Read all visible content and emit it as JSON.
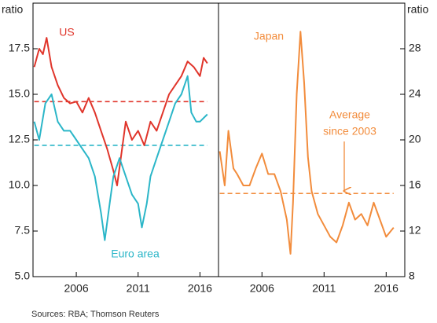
{
  "chart_data": [
    {
      "type": "line",
      "axis_label": "ratio",
      "xlim": [
        2002.5,
        2017.5
      ],
      "xticks": [
        2006,
        2011,
        2016
      ],
      "ylim": [
        5,
        20
      ],
      "yticks": [
        {
          "value": 5,
          "label": "5.0"
        },
        7.5,
        {
          "value": 10,
          "label": "10.0"
        },
        12.5,
        {
          "value": 15,
          "label": "15.0"
        },
        17.5
      ],
      "series": [
        {
          "name": "US",
          "color": "#e0352b",
          "average": 14.6,
          "x": [
            2002.6,
            2003,
            2003.3,
            2003.6,
            2004,
            2004.5,
            2005,
            2005.5,
            2006,
            2006.5,
            2007,
            2007.5,
            2008,
            2008.5,
            2009,
            2009.3,
            2009.6,
            2010,
            2010.5,
            2011,
            2011.5,
            2012,
            2012.5,
            2013,
            2013.5,
            2014,
            2014.5,
            2015,
            2015.5,
            2016,
            2016.3,
            2016.6
          ],
          "values": [
            16.5,
            17.5,
            17.2,
            18.1,
            16.5,
            15.5,
            14.8,
            14.5,
            14.6,
            14.0,
            14.8,
            14.0,
            13.0,
            12.0,
            10.8,
            10.0,
            11.5,
            13.5,
            12.5,
            13.0,
            12.2,
            13.5,
            13.0,
            14.0,
            15.0,
            15.5,
            16.0,
            16.8,
            16.5,
            16.0,
            17.0,
            16.7
          ]
        },
        {
          "name": "Euro area",
          "color": "#2bb6c8",
          "average": 12.2,
          "x": [
            2002.6,
            2003,
            2003.5,
            2004,
            2004.5,
            2005,
            2005.5,
            2006,
            2006.5,
            2007,
            2007.5,
            2008,
            2008.3,
            2008.7,
            2009,
            2009.5,
            2010,
            2010.5,
            2011,
            2011.3,
            2011.7,
            2012,
            2012.5,
            2013,
            2013.5,
            2014,
            2014.5,
            2015,
            2015.3,
            2015.7,
            2016,
            2016.6
          ],
          "values": [
            13.5,
            12.5,
            14.5,
            15.0,
            13.5,
            13.0,
            13.0,
            12.5,
            12.0,
            11.5,
            10.5,
            8.5,
            7.0,
            9.0,
            10.5,
            11.5,
            10.5,
            9.5,
            9.0,
            7.7,
            9.0,
            10.5,
            11.5,
            12.5,
            13.5,
            14.5,
            15.0,
            16.0,
            14.0,
            13.5,
            13.5,
            13.9
          ]
        }
      ]
    },
    {
      "type": "line",
      "axis_label": "ratio",
      "xlim": [
        2002.5,
        2017.5
      ],
      "xticks": [
        2006,
        2011,
        2016
      ],
      "ylim": [
        8,
        32
      ],
      "yticks": [
        8,
        12,
        16,
        20,
        24,
        28
      ],
      "annotation": [
        "Average",
        "since 2003"
      ],
      "series": [
        {
          "name": "Japan",
          "color": "#f28c3c",
          "average": 15.3,
          "x": [
            2002.6,
            2003,
            2003.3,
            2003.7,
            2004,
            2004.5,
            2005,
            2005.5,
            2006,
            2006.5,
            2007,
            2007.5,
            2008,
            2008.3,
            2008.5,
            2008.8,
            2009.1,
            2009.4,
            2009.7,
            2010,
            2010.5,
            2011,
            2011.5,
            2012,
            2012.5,
            2013,
            2013.5,
            2014,
            2014.5,
            2015,
            2015.5,
            2016,
            2016.6
          ],
          "values": [
            19,
            16,
            20.8,
            17.5,
            17.0,
            16.0,
            16.0,
            17.5,
            18.8,
            17,
            17,
            15.5,
            13,
            10,
            14.5,
            24,
            29.5,
            25,
            18.5,
            15.5,
            13.5,
            12.5,
            11.5,
            11.0,
            12.5,
            14.5,
            13.0,
            13.5,
            12.5,
            14.5,
            13.0,
            11.5,
            12.3
          ]
        }
      ]
    }
  ],
  "source": "Sources:   RBA; Thomson Reuters"
}
